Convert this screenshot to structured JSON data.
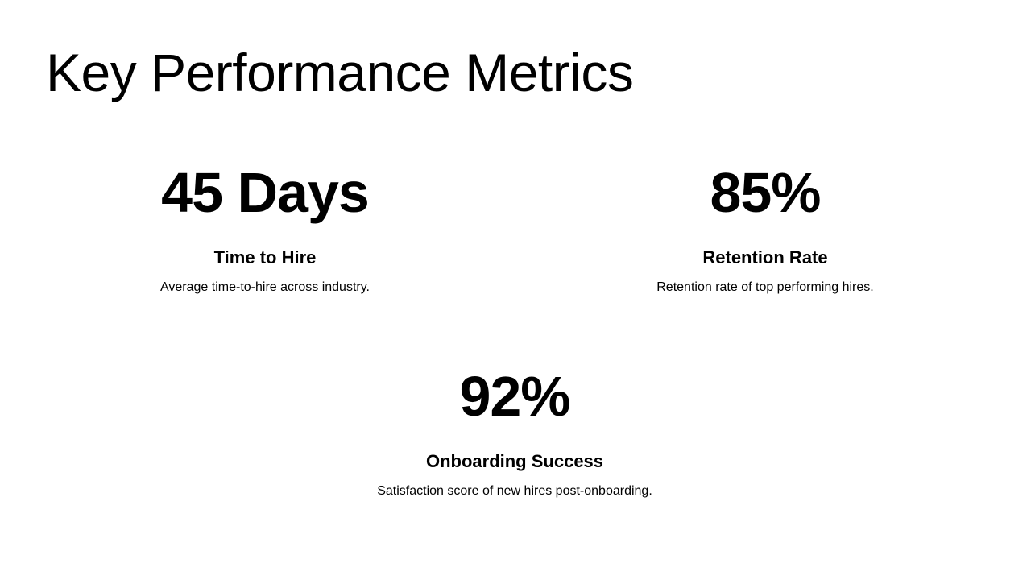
{
  "slide": {
    "title": "Key Performance Metrics",
    "metrics": [
      {
        "value": "45 Days",
        "label": "Time to Hire",
        "description": "Average time-to-hire across industry."
      },
      {
        "value": "85%",
        "label": "Retention Rate",
        "description": "Retention rate of top performing hires."
      },
      {
        "value": "92%",
        "label": "Onboarding Success",
        "description": "Satisfaction score of new hires post-onboarding."
      }
    ]
  }
}
